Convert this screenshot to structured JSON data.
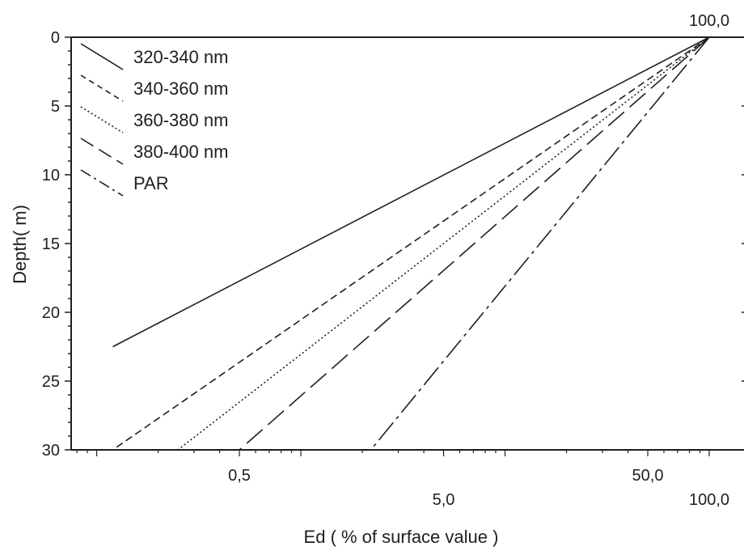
{
  "chart_data": {
    "type": "line",
    "xlabel": "Ed ( % of surface value )",
    "ylabel": "Depth(  m)",
    "x_scale": "log",
    "y_inverted": true,
    "xlim": [
      0.075,
      100
    ],
    "ylim": [
      0,
      30
    ],
    "grid": false,
    "legend_position": "top-left",
    "y_ticks": [
      0,
      5,
      10,
      15,
      20,
      25,
      30
    ],
    "y_tick_labels": [
      "0",
      "5",
      "10",
      "15",
      "20",
      "25",
      "30"
    ],
    "x_tick_labels_lower": [
      {
        "value": 0.5,
        "label": "0,5"
      },
      {
        "value": 50,
        "label": "50,0"
      }
    ],
    "x_tick_labels_upper": [
      {
        "value": 5,
        "label": "5,0"
      },
      {
        "value": 100,
        "label": "100,0"
      }
    ],
    "top_label": {
      "value": 100,
      "label": "100,0"
    },
    "series": [
      {
        "name": "320-340 nm",
        "style": "solid",
        "x": [
          100,
          0.12
        ],
        "y": [
          0,
          22.5
        ]
      },
      {
        "name": "340-360 nm",
        "style": "dashed",
        "x": [
          100,
          0.12
        ],
        "y": [
          0,
          30
        ]
      },
      {
        "name": "360-380 nm",
        "style": "dotted",
        "x": [
          100,
          0.25
        ],
        "y": [
          0,
          30
        ]
      },
      {
        "name": "380-400 nm",
        "style": "long-dash",
        "x": [
          100,
          0.5
        ],
        "y": [
          0,
          30
        ]
      },
      {
        "name": "PAR",
        "style": "dash-dot",
        "x": [
          100,
          2.2
        ],
        "y": [
          0,
          30
        ]
      }
    ]
  }
}
